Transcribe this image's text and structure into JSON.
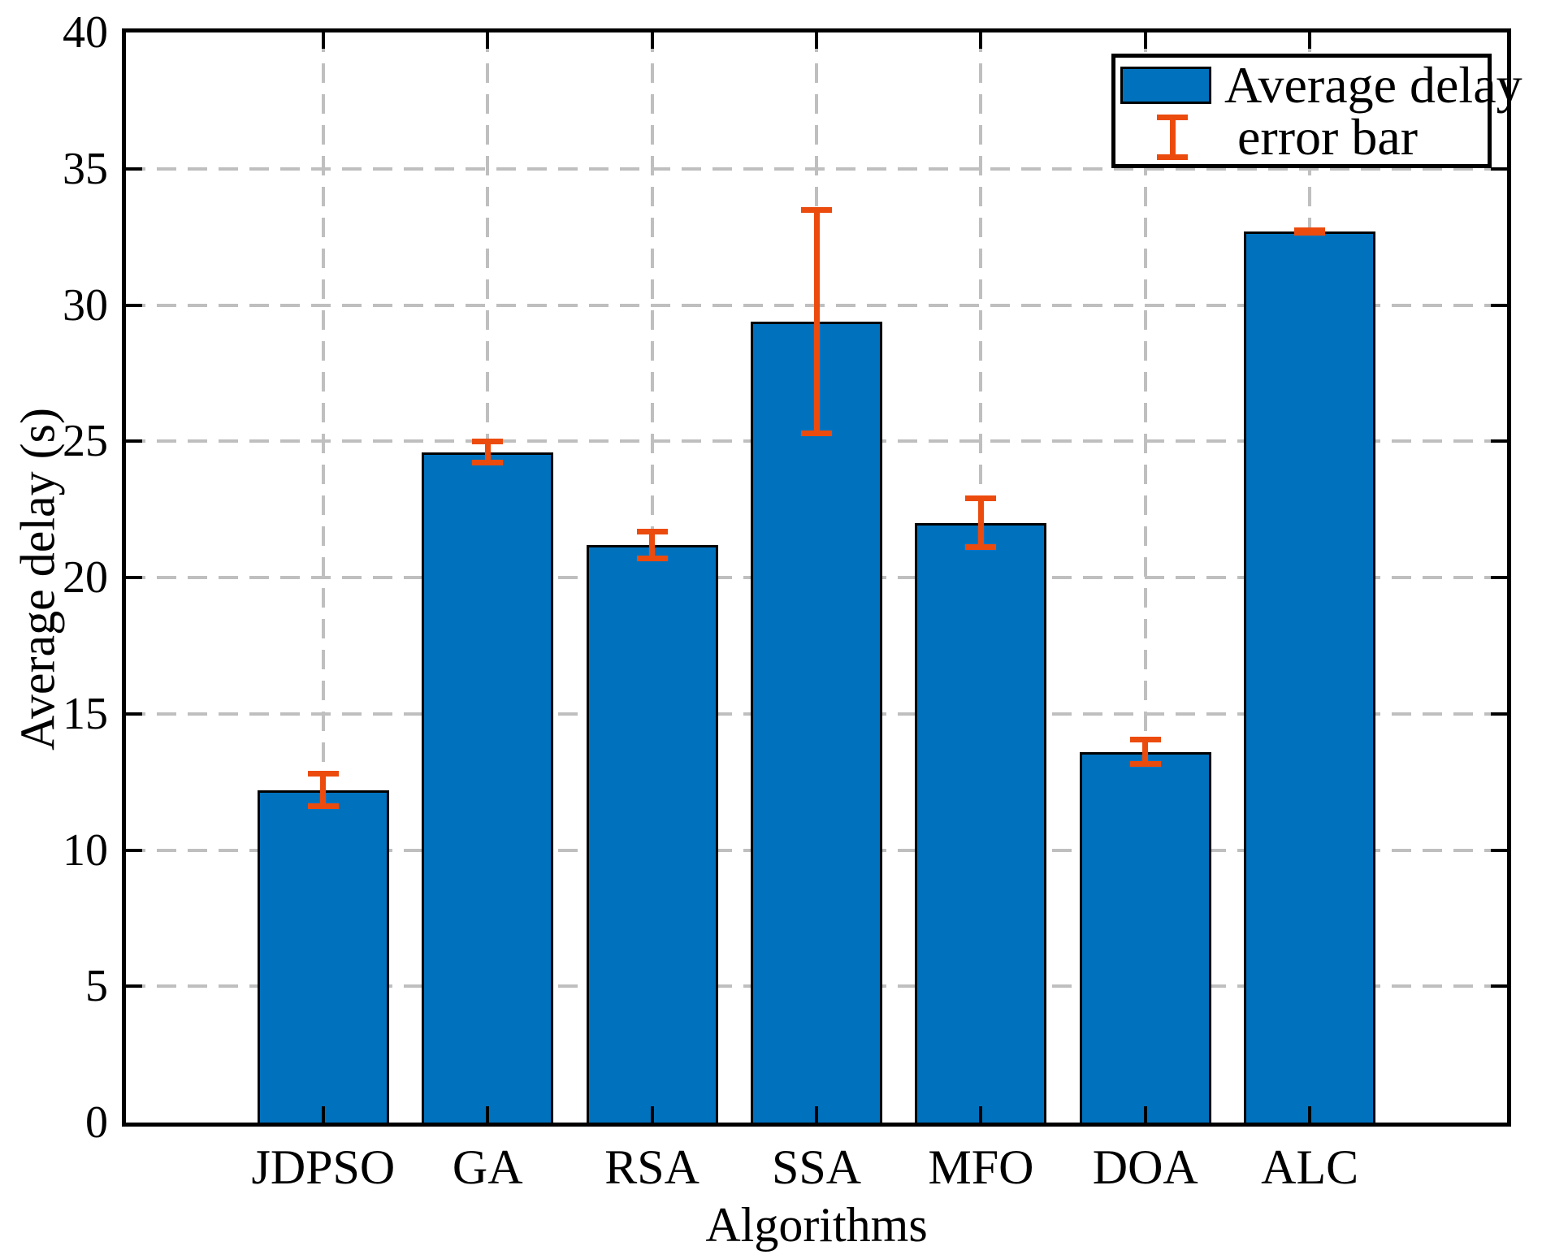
{
  "chart_data": {
    "type": "bar",
    "title": "",
    "categories": [
      "JDPSO",
      "GA",
      "RSA",
      "SSA",
      "MFO",
      "DOA",
      "ALC"
    ],
    "series": [
      {
        "name": "Average delay",
        "values": [
          12.2,
          24.6,
          21.2,
          29.4,
          22.0,
          13.6,
          32.7
        ]
      }
    ],
    "error_bars": {
      "name": "error bar",
      "values": [
        0.7,
        0.5,
        0.6,
        4.2,
        1.0,
        0.55,
        0.06
      ]
    },
    "xlabel": "Algorithms",
    "ylabel": "Average delay (s)",
    "ylim": [
      0,
      40
    ],
    "yticks": [
      0,
      5,
      10,
      15,
      20,
      25,
      30,
      35,
      40
    ],
    "grid": "dashed-both-axes",
    "legend": {
      "position": "top-right",
      "entries": [
        "Average delay",
        "error bar"
      ]
    },
    "colors": {
      "bar_fill": "#0072BD",
      "bar_edge": "#000000",
      "error_bar": "#EC4B0E",
      "grid": "#BFBFBF",
      "axis": "#000000",
      "text": "#000000",
      "background": "#FFFFFF"
    }
  }
}
